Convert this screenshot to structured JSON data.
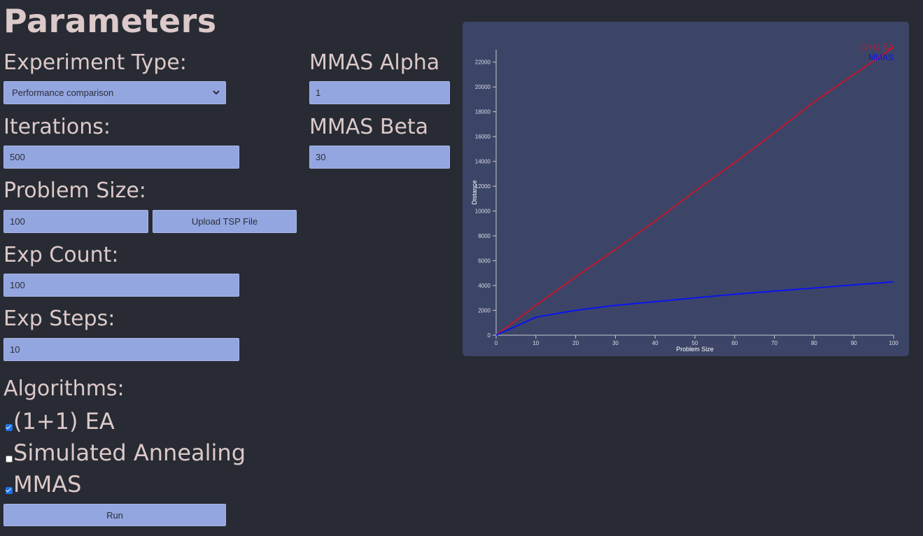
{
  "page": {
    "title": "Parameters"
  },
  "form": {
    "experiment_type": {
      "label": "Experiment Type:",
      "value": "Performance comparison"
    },
    "iterations": {
      "label": "Iterations:",
      "value": "500"
    },
    "problem_size": {
      "label": "Problem Size:",
      "value": "100",
      "upload_label": "Upload TSP File"
    },
    "exp_count": {
      "label": "Exp Count:",
      "value": "100"
    },
    "exp_steps": {
      "label": "Exp Steps:",
      "value": "10"
    },
    "mmas_alpha": {
      "label": "MMAS Alpha",
      "value": "1"
    },
    "mmas_beta": {
      "label": "MMAS Beta",
      "value": "30"
    },
    "algorithms": {
      "label": "Algorithms:",
      "items": [
        {
          "label": "(1+1) EA",
          "checked": true
        },
        {
          "label": "Simulated Annealing",
          "checked": false
        },
        {
          "label": "MMAS",
          "checked": true
        }
      ]
    },
    "run_label": "Run"
  },
  "colors": {
    "background": "#282b33",
    "field": "#94a6e0",
    "chart_panel": "#3c4567",
    "ea_line": "#c0172e",
    "mmas_line": "#0a14f0"
  },
  "chart_data": {
    "type": "line",
    "xlabel": "Problem Size",
    "ylabel": "Distance",
    "xlim": [
      0,
      100
    ],
    "ylim": [
      0,
      23000
    ],
    "x_ticks": [
      0,
      10,
      20,
      30,
      40,
      50,
      60,
      70,
      80,
      90,
      100
    ],
    "y_ticks": [
      0,
      2000,
      4000,
      6000,
      8000,
      10000,
      12000,
      14000,
      16000,
      18000,
      20000,
      22000
    ],
    "legend_position": "top-right",
    "x": [
      0,
      10,
      20,
      30,
      40,
      50,
      60,
      70,
      80,
      90,
      100
    ],
    "series": [
      {
        "name": "(1+1) EA",
        "color": "#c0172e",
        "values": [
          0,
          2400,
          4700,
          6900,
          9200,
          11600,
          13900,
          16300,
          18800,
          21000,
          23200
        ]
      },
      {
        "name": "MMAS",
        "color": "#0a14f0",
        "values": [
          0,
          1450,
          2000,
          2400,
          2700,
          3000,
          3300,
          3550,
          3800,
          4050,
          4300
        ]
      }
    ]
  }
}
